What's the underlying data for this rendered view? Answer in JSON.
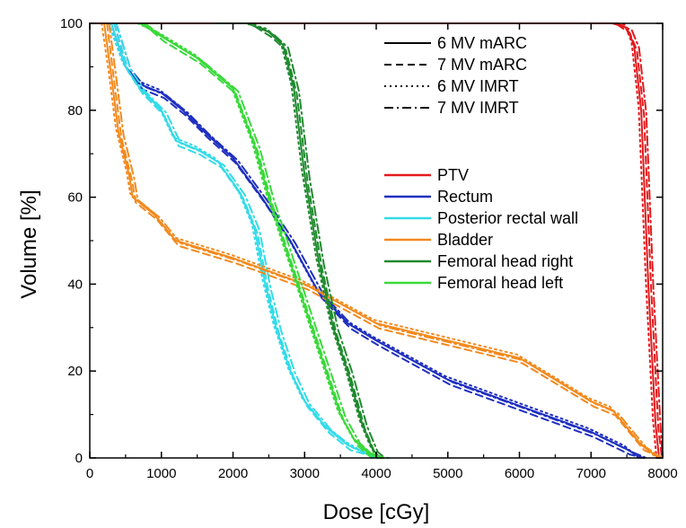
{
  "chart_data": {
    "type": "line",
    "title": "",
    "xlabel": "Dose [cGy]",
    "ylabel": "Volume [%]",
    "xlim": [
      0,
      8000
    ],
    "ylim": [
      0,
      100
    ],
    "xticks": [
      "0",
      "1000",
      "2000",
      "3000",
      "4000",
      "5000",
      "6000",
      "7000",
      "8000"
    ],
    "yticks": [
      "0",
      "20",
      "40",
      "60",
      "80",
      "100"
    ],
    "grid": false,
    "legend_position": "top-right",
    "legend_styles": [
      {
        "label": "6 MV mARC",
        "dash": "solid"
      },
      {
        "label": "7 MV mARC",
        "dash": "dashed"
      },
      {
        "label": "6 MV IMRT",
        "dash": "dotted"
      },
      {
        "label": "7 MV IMRT",
        "dash": "dashdot"
      }
    ],
    "legend_structures": [
      {
        "label": "PTV",
        "color": "#e31a1c"
      },
      {
        "label": "Rectum",
        "color": "#1f2fbf"
      },
      {
        "label": "Posterior rectal wall",
        "color": "#33dbe8"
      },
      {
        "label": "Bladder",
        "color": "#f28a1e"
      },
      {
        "label": "Femoral head right",
        "color": "#1f8a2e"
      },
      {
        "label": "Femoral head left",
        "color": "#3ad93a"
      }
    ],
    "curves": [
      {
        "structure": "PTV",
        "color": "#e31a1c",
        "points": [
          [
            0,
            100
          ],
          [
            7300,
            100
          ],
          [
            7500,
            99
          ],
          [
            7600,
            95
          ],
          [
            7700,
            80
          ],
          [
            7800,
            40
          ],
          [
            7900,
            8
          ],
          [
            7950,
            0
          ]
        ]
      },
      {
        "structure": "Rectum",
        "color": "#1f2fbf",
        "points": [
          [
            300,
            100
          ],
          [
            500,
            90
          ],
          [
            700,
            86
          ],
          [
            1000,
            84
          ],
          [
            1300,
            80
          ],
          [
            1600,
            75
          ],
          [
            2000,
            69
          ],
          [
            2400,
            60
          ],
          [
            2800,
            50
          ],
          [
            3200,
            38
          ],
          [
            3600,
            31
          ],
          [
            4000,
            27
          ],
          [
            5000,
            18
          ],
          [
            6000,
            12
          ],
          [
            7000,
            6
          ],
          [
            7500,
            2
          ],
          [
            7700,
            0
          ]
        ]
      },
      {
        "structure": "Posterior rectal wall",
        "color": "#33dbe8",
        "points": [
          [
            300,
            100
          ],
          [
            500,
            90
          ],
          [
            700,
            85
          ],
          [
            1000,
            80
          ],
          [
            1200,
            73
          ],
          [
            1500,
            71
          ],
          [
            1800,
            68
          ],
          [
            2100,
            61
          ],
          [
            2300,
            53
          ],
          [
            2450,
            40
          ],
          [
            2600,
            30
          ],
          [
            2800,
            20
          ],
          [
            3000,
            13
          ],
          [
            3300,
            7
          ],
          [
            3600,
            3
          ],
          [
            4000,
            0
          ]
        ]
      },
      {
        "structure": "Bladder",
        "color": "#f28a1e",
        "points": [
          [
            200,
            100
          ],
          [
            300,
            88
          ],
          [
            400,
            75
          ],
          [
            550,
            65
          ],
          [
            600,
            60
          ],
          [
            900,
            56
          ],
          [
            1100,
            52
          ],
          [
            1200,
            50
          ],
          [
            2000,
            46
          ],
          [
            3000,
            40
          ],
          [
            4000,
            31
          ],
          [
            5000,
            27
          ],
          [
            6000,
            23
          ],
          [
            7000,
            13
          ],
          [
            7300,
            11
          ],
          [
            7500,
            7
          ],
          [
            7700,
            3
          ],
          [
            7950,
            0
          ]
        ]
      },
      {
        "structure": "Femoral head right",
        "color": "#1f8a2e",
        "points": [
          [
            1800,
            100
          ],
          [
            2200,
            100
          ],
          [
            2500,
            98
          ],
          [
            2700,
            95
          ],
          [
            2850,
            85
          ],
          [
            3000,
            65
          ],
          [
            3200,
            45
          ],
          [
            3400,
            30
          ],
          [
            3600,
            20
          ],
          [
            3800,
            8
          ],
          [
            3950,
            2
          ],
          [
            4050,
            0
          ]
        ]
      },
      {
        "structure": "Femoral head left",
        "color": "#3ad93a",
        "points": [
          [
            700,
            100
          ],
          [
            1000,
            97
          ],
          [
            1500,
            92
          ],
          [
            2000,
            85
          ],
          [
            2300,
            72
          ],
          [
            2500,
            60
          ],
          [
            2700,
            50
          ],
          [
            2900,
            40
          ],
          [
            3100,
            30
          ],
          [
            3300,
            20
          ],
          [
            3500,
            10
          ],
          [
            3700,
            4
          ],
          [
            3900,
            1
          ],
          [
            4100,
            0
          ]
        ]
      }
    ]
  }
}
